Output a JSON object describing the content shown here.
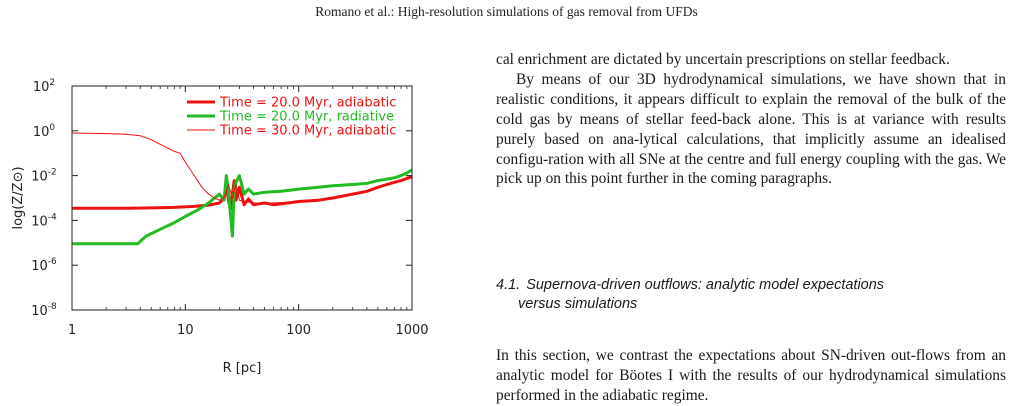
{
  "header": {
    "running_head": "Romano et al.: High-resolution simulations of gas removal from UFDs"
  },
  "figure": {
    "chart_data": {
      "type": "line",
      "xscale": "log",
      "yscale": "log",
      "xlim": [
        1,
        1000
      ],
      "ylim": [
        1e-08,
        100
      ],
      "xlabel": "R [pc]",
      "ylabel": "log(Z/Z⊙)",
      "xticks": [
        "1",
        "10",
        "100",
        "1000"
      ],
      "yticks": [
        {
          "base": "10",
          "exp": "2"
        },
        {
          "base": "10",
          "exp": "0"
        },
        {
          "base": "10",
          "exp": "-2"
        },
        {
          "base": "10",
          "exp": "-4"
        },
        {
          "base": "10",
          "exp": "-6"
        },
        {
          "base": "10",
          "exp": "-8"
        }
      ],
      "legend_position": "top-right",
      "series": [
        {
          "name": "Time = 20.0 Myr, adiabatic",
          "color": "#ee1111",
          "style": "thick",
          "x": [
            1,
            2,
            3,
            5,
            8,
            12,
            16,
            20,
            22,
            23,
            24,
            25,
            26,
            27,
            28,
            30,
            33,
            36,
            40,
            50,
            60,
            80,
            100,
            150,
            200,
            300,
            400,
            500,
            600,
            700,
            800,
            900,
            1000
          ],
          "y": [
            0.00035,
            0.00035,
            0.00035,
            0.00036,
            0.00038,
            0.00042,
            0.00048,
            0.0006,
            0.001,
            0.004,
            0.0008,
            0.0003,
            0.0015,
            0.006,
            0.0008,
            0.003,
            0.0005,
            0.0009,
            0.0005,
            0.0006,
            0.0005,
            0.0006,
            0.0007,
            0.0008,
            0.001,
            0.0015,
            0.002,
            0.003,
            0.004,
            0.005,
            0.006,
            0.0075,
            0.009
          ]
        },
        {
          "name": "Time = 20.0 Myr, radiative",
          "color": "#22bb22",
          "style": "thick",
          "x": [
            1,
            2,
            3,
            3.8,
            4.5,
            6,
            8,
            10,
            13,
            16,
            20,
            22,
            23,
            24,
            25,
            26,
            27,
            28,
            30,
            33,
            36,
            40,
            50,
            70,
            100,
            150,
            200,
            300,
            400,
            500,
            600,
            700,
            800,
            900,
            1000
          ],
          "y": [
            9e-06,
            9e-06,
            9e-06,
            9e-06,
            2e-05,
            4e-05,
            8e-05,
            0.00015,
            0.0003,
            0.0006,
            0.0015,
            0.0008,
            0.01,
            0.002,
            0.0002,
            2e-05,
            0.002,
            0.005,
            0.01,
            0.0015,
            0.0025,
            0.0015,
            0.0018,
            0.002,
            0.0025,
            0.003,
            0.0035,
            0.004,
            0.0045,
            0.006,
            0.007,
            0.008,
            0.01,
            0.013,
            0.018
          ]
        },
        {
          "name": "Time = 30.0 Myr, adiabatic",
          "color": "#ee1111",
          "style": "thin",
          "x": [
            1,
            2,
            3,
            4,
            5,
            6,
            8,
            9,
            10,
            12,
            14,
            16,
            18,
            20,
            22,
            24,
            26,
            28,
            30,
            40,
            60,
            100,
            200,
            400,
            600,
            800,
            1000
          ],
          "y": [
            0.8,
            0.75,
            0.7,
            0.6,
            0.4,
            0.25,
            0.12,
            0.1,
            0.04,
            0.01,
            0.003,
            0.0015,
            0.001,
            0.0008,
            0.001,
            0.004,
            0.001,
            0.004,
            0.0008,
            0.0006,
            0.0006,
            0.0007,
            0.001,
            0.002,
            0.004,
            0.006,
            0.008
          ]
        }
      ]
    }
  },
  "body": {
    "para1": "cal enrichment are dictated by uncertain prescriptions on stellar feedback.",
    "para2": "By means of our 3D hydrodynamical simulations, we have shown that in realistic conditions, it appears difficult to explain the removal of the bulk of the cold gas by means of stellar feed-back alone. This is at variance with results purely based on ana-lytical calculations, that implicitly assume an idealised configu-ration with all SNe at the centre and full energy coupling with the gas. We pick up on this point further in the coming paragraphs.",
    "section": {
      "number": "4.1.",
      "title_line1": "Supernova-driven outflows: analytic model expectations",
      "title_line2": "versus simulations"
    },
    "para3": "In this section, we contrast the expectations about SN-driven out-flows from an analytic model for Böotes I with the results of our hydrodynamical simulations performed in the adiabatic regime."
  }
}
